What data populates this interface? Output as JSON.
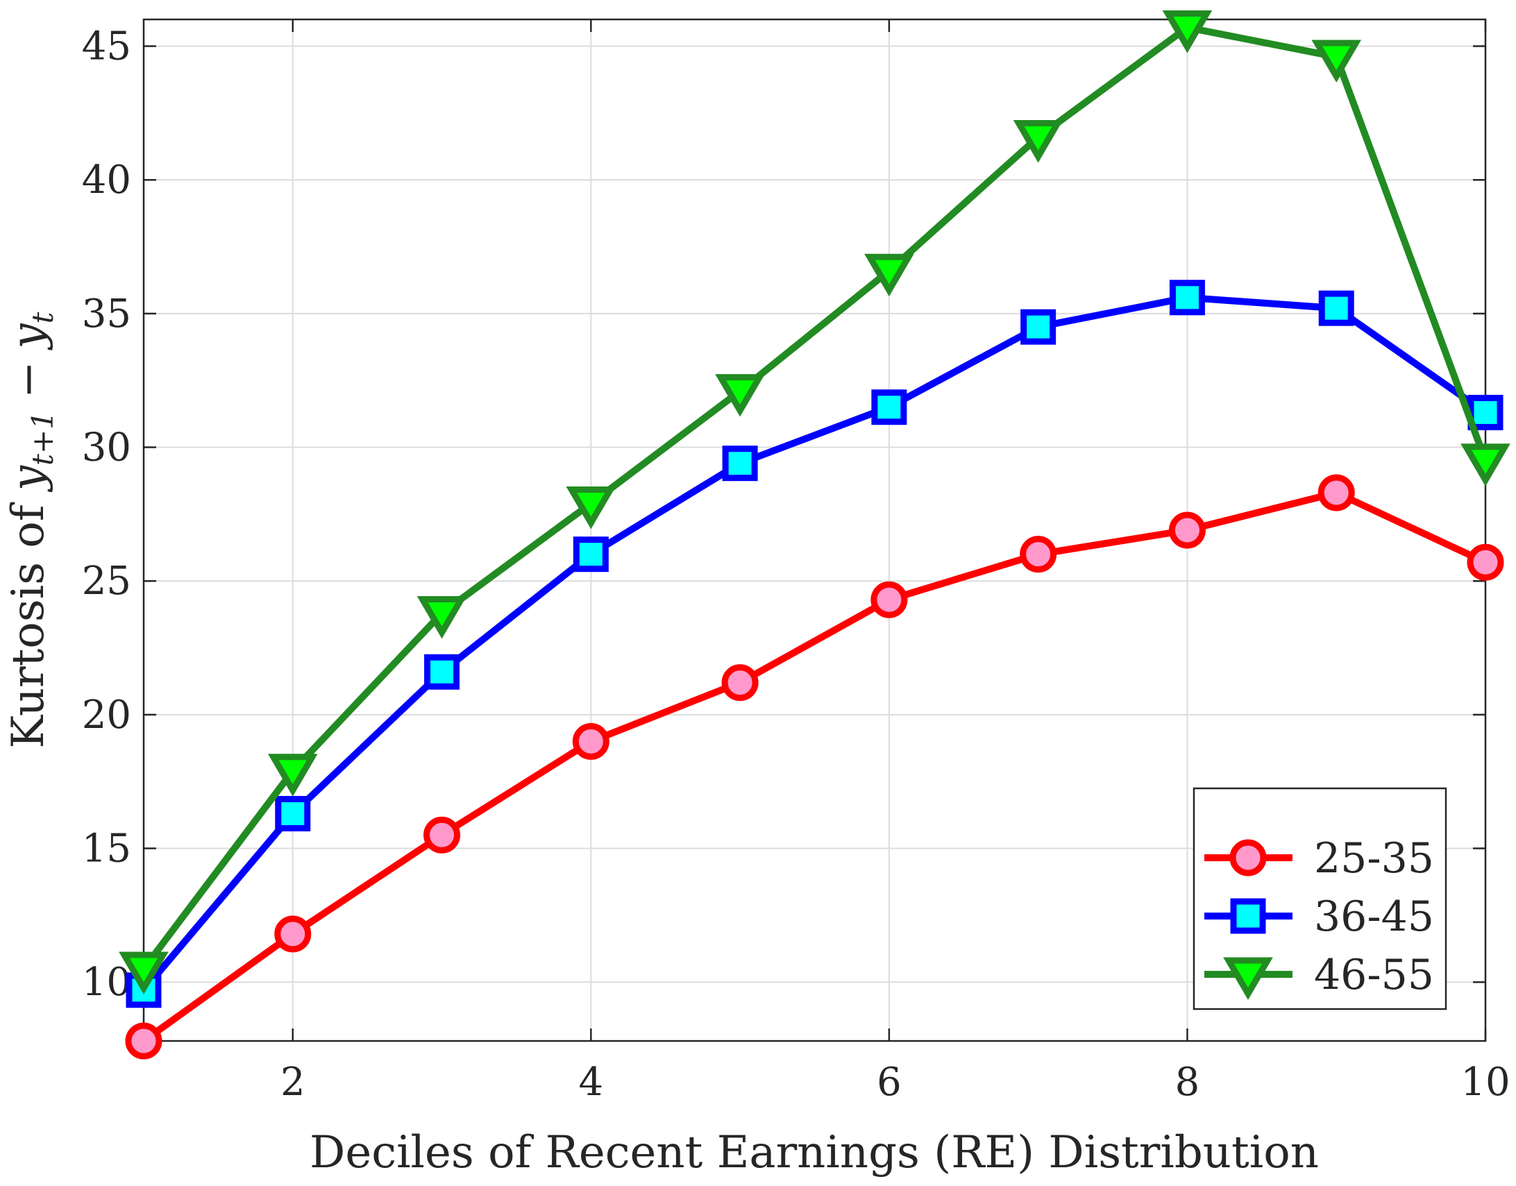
{
  "chart_data": {
    "type": "line",
    "xlabel": "Deciles of Recent Earnings (RE) Distribution",
    "ylabel": "Kurtosis of y_{t+1} − y_t",
    "ylabel_parts": {
      "prefix": "Kurtosis of ",
      "var1": "y",
      "sub1": "t+1",
      "minus": "−",
      "var2": "y",
      "sub2": "t"
    },
    "xlim": [
      1,
      10
    ],
    "ylim": [
      7.8,
      46
    ],
    "x_ticks": [
      2,
      4,
      6,
      8,
      10
    ],
    "y_ticks": [
      10,
      15,
      20,
      25,
      30,
      35,
      40,
      45
    ],
    "grid": true,
    "legend_position": "bottom-right",
    "x": [
      1,
      2,
      3,
      4,
      5,
      6,
      7,
      8,
      9,
      10
    ],
    "series": [
      {
        "name": "25-35",
        "marker": "circle",
        "line_color": "#ff0000",
        "marker_fill": "#ff99cc",
        "values": [
          7.8,
          11.8,
          15.5,
          19.0,
          21.2,
          24.3,
          26.0,
          26.9,
          28.3,
          25.7
        ]
      },
      {
        "name": "36-45",
        "marker": "square",
        "line_color": "#0000ff",
        "marker_fill": "#00ffff",
        "values": [
          9.7,
          16.3,
          21.6,
          26.0,
          29.4,
          31.5,
          34.5,
          35.6,
          35.2,
          31.3
        ]
      },
      {
        "name": "46-55",
        "marker": "triangle-down",
        "line_color": "#228b22",
        "marker_fill": "#00ff00",
        "values": [
          10.5,
          17.9,
          23.8,
          27.9,
          32.1,
          36.6,
          41.6,
          45.7,
          44.6,
          29.5
        ]
      }
    ]
  }
}
